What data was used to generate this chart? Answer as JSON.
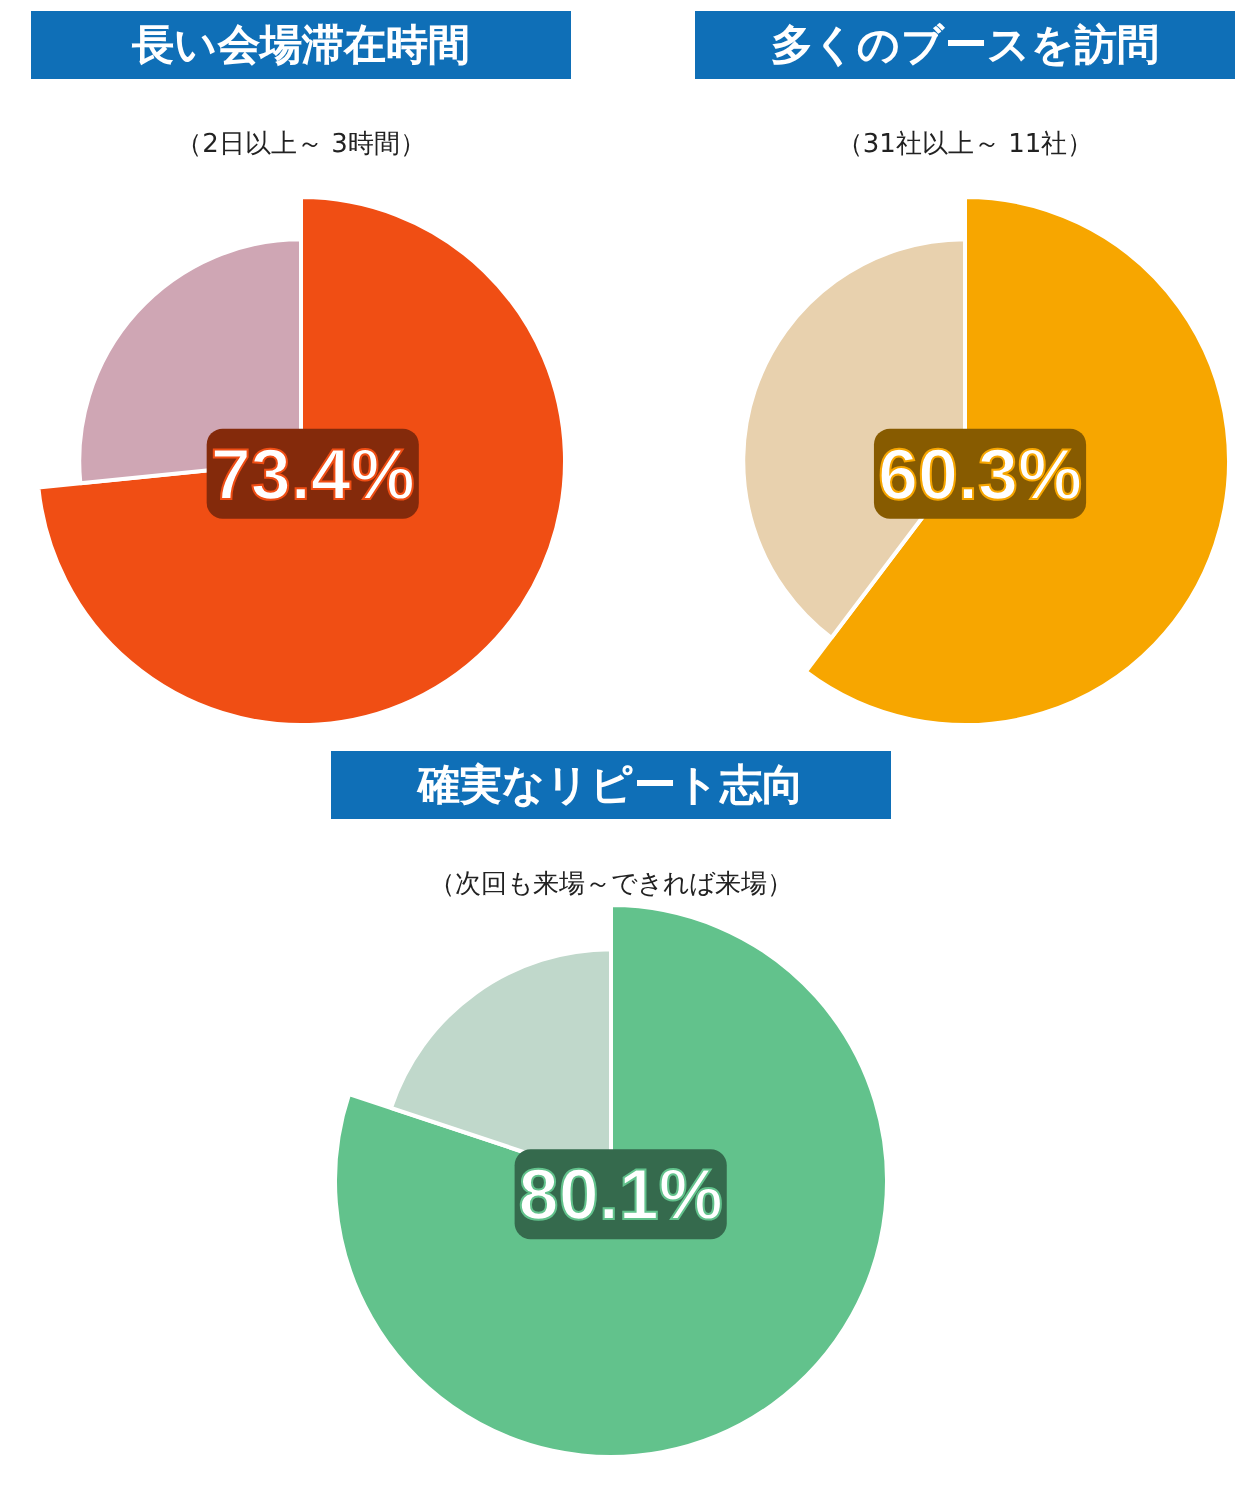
{
  "chart_data": [
    {
      "type": "pie",
      "title": "長い会場滞在時間",
      "subtitle": "（2日以上～ 3時間）",
      "categories": [
        null,
        null
      ],
      "values": [
        73.4,
        26.6
      ],
      "colors": [
        "#f04e14",
        "#cfa6b4"
      ],
      "value_labels": [
        "73.4%",
        null
      ]
    },
    {
      "type": "pie",
      "title": "多くのブースを訪問",
      "subtitle": "（31社以上～ 11社）",
      "categories": [
        null,
        null
      ],
      "values": [
        60.3,
        39.7
      ],
      "colors": [
        "#f7a600",
        "#e8d1ae"
      ],
      "value_labels": [
        "60.3%",
        null
      ]
    },
    {
      "type": "pie",
      "title": "確実なリピート志向",
      "subtitle": "（次回も来場～できれば来場）",
      "categories": [
        null,
        null
      ],
      "values": [
        80.1,
        19.9
      ],
      "colors": [
        "#62c28c",
        "#c0d8cb"
      ],
      "value_labels": [
        "80.1%",
        null
      ]
    }
  ]
}
